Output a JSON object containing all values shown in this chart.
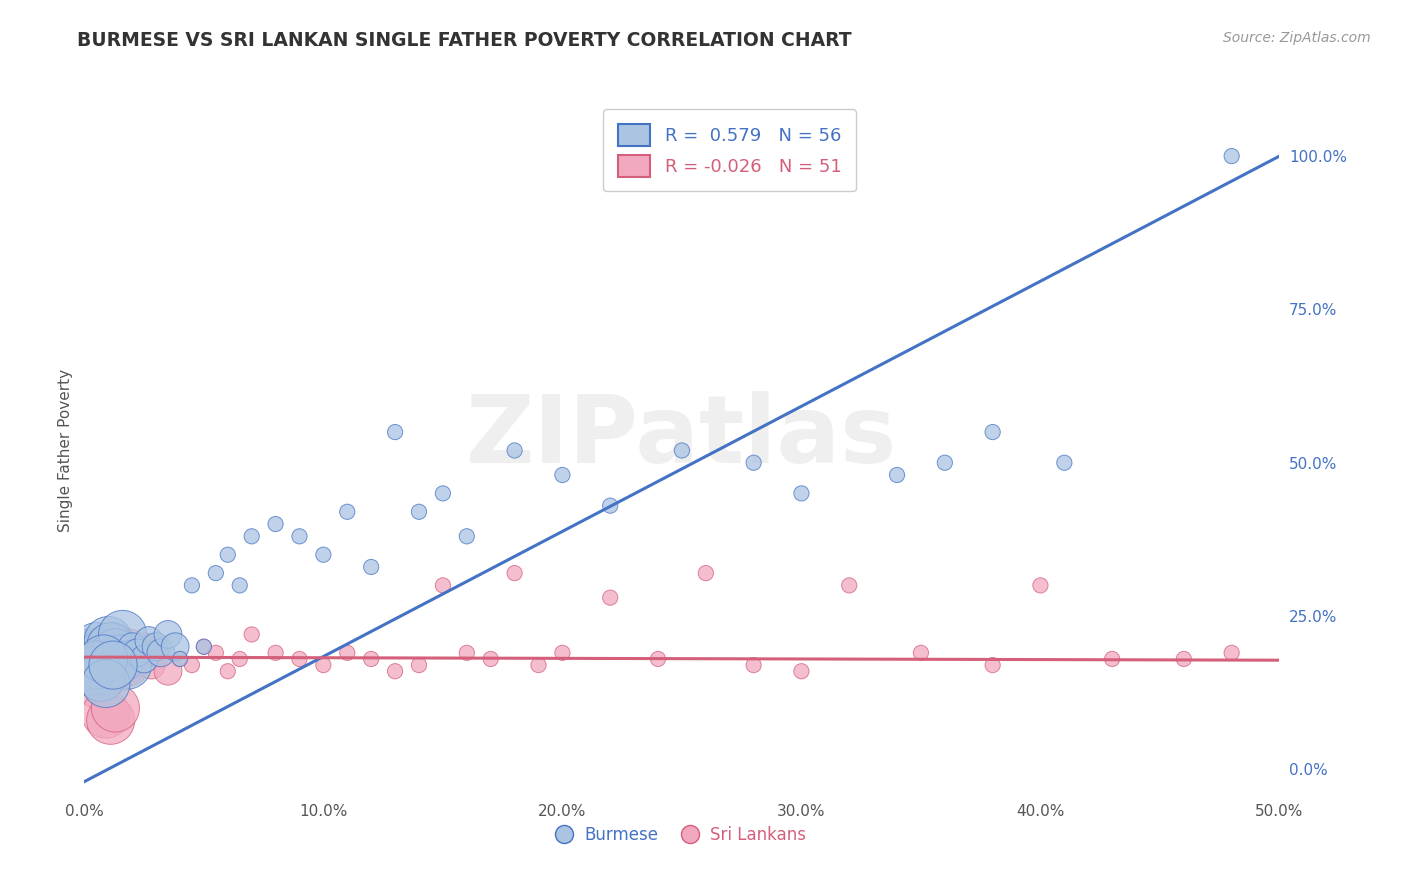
{
  "title": "BURMESE VS SRI LANKAN SINGLE FATHER POVERTY CORRELATION CHART",
  "source": "Source: ZipAtlas.com",
  "ylabel": "Single Father Poverty",
  "xlim": [
    0.0,
    0.5
  ],
  "ylim": [
    -0.04,
    1.08
  ],
  "x_tick_vals": [
    0.0,
    0.1,
    0.2,
    0.3,
    0.4,
    0.5
  ],
  "x_tick_labels": [
    "0.0%",
    "10.0%",
    "20.0%",
    "30.0%",
    "40.0%",
    "50.0%"
  ],
  "y_tick_vals": [
    0.0,
    0.25,
    0.5,
    0.75,
    1.0
  ],
  "y_tick_labels": [
    "0.0%",
    "25.0%",
    "50.0%",
    "75.0%",
    "100.0%"
  ],
  "burmese_R": 0.579,
  "burmese_N": 56,
  "srilankan_R": -0.026,
  "srilankan_N": 51,
  "burmese_color": "#aac4e2",
  "srilankan_color": "#f2a8be",
  "burmese_line_color": "#4472c4",
  "srilankan_line_color": "#d45f7a",
  "background_color": "#ffffff",
  "grid_color": "#c8c8c8",
  "title_color": "#333333",
  "watermark": "ZIPatlas",
  "burmese_line_x0": 0.0,
  "burmese_line_y0": -0.02,
  "burmese_line_x1": 0.5,
  "burmese_line_y1": 1.0,
  "srilankan_line_x0": 0.0,
  "srilankan_line_y0": 0.183,
  "srilankan_line_x1": 0.5,
  "srilankan_line_y1": 0.178,
  "burmese_x": [
    0.003,
    0.004,
    0.005,
    0.006,
    0.007,
    0.008,
    0.009,
    0.01,
    0.01,
    0.011,
    0.012,
    0.013,
    0.015,
    0.016,
    0.018,
    0.02,
    0.022,
    0.025,
    0.027,
    0.03,
    0.032,
    0.035,
    0.038,
    0.04,
    0.045,
    0.05,
    0.055,
    0.06,
    0.065,
    0.07,
    0.08,
    0.09,
    0.1,
    0.11,
    0.12,
    0.13,
    0.14,
    0.15,
    0.16,
    0.18,
    0.2,
    0.22,
    0.25,
    0.28,
    0.3,
    0.34,
    0.36,
    0.38,
    0.41,
    0.48,
    0.003,
    0.005,
    0.007,
    0.008,
    0.009,
    0.012
  ],
  "burmese_y": [
    0.19,
    0.18,
    0.2,
    0.17,
    0.18,
    0.19,
    0.16,
    0.21,
    0.18,
    0.2,
    0.17,
    0.19,
    0.18,
    0.22,
    0.17,
    0.2,
    0.19,
    0.18,
    0.21,
    0.2,
    0.19,
    0.22,
    0.2,
    0.18,
    0.3,
    0.2,
    0.32,
    0.35,
    0.3,
    0.38,
    0.4,
    0.38,
    0.35,
    0.42,
    0.33,
    0.55,
    0.42,
    0.45,
    0.38,
    0.52,
    0.48,
    0.43,
    0.52,
    0.5,
    0.45,
    0.48,
    0.5,
    0.55,
    0.5,
    1.0,
    0.16,
    0.17,
    0.15,
    0.18,
    0.14,
    0.17
  ],
  "srilankan_x": [
    0.003,
    0.005,
    0.006,
    0.008,
    0.01,
    0.012,
    0.015,
    0.018,
    0.02,
    0.022,
    0.025,
    0.028,
    0.03,
    0.035,
    0.04,
    0.045,
    0.05,
    0.055,
    0.06,
    0.065,
    0.07,
    0.08,
    0.09,
    0.1,
    0.11,
    0.12,
    0.13,
    0.14,
    0.15,
    0.16,
    0.17,
    0.18,
    0.19,
    0.2,
    0.22,
    0.24,
    0.26,
    0.28,
    0.3,
    0.32,
    0.35,
    0.38,
    0.4,
    0.43,
    0.46,
    0.48,
    0.005,
    0.007,
    0.009,
    0.011,
    0.013
  ],
  "srilankan_y": [
    0.18,
    0.19,
    0.17,
    0.16,
    0.18,
    0.2,
    0.17,
    0.19,
    0.16,
    0.18,
    0.2,
    0.17,
    0.19,
    0.16,
    0.18,
    0.17,
    0.2,
    0.19,
    0.16,
    0.18,
    0.22,
    0.19,
    0.18,
    0.17,
    0.19,
    0.18,
    0.16,
    0.17,
    0.3,
    0.19,
    0.18,
    0.32,
    0.17,
    0.19,
    0.28,
    0.18,
    0.32,
    0.17,
    0.16,
    0.3,
    0.19,
    0.17,
    0.3,
    0.18,
    0.18,
    0.19,
    0.14,
    0.15,
    0.09,
    0.08,
    0.1
  ]
}
